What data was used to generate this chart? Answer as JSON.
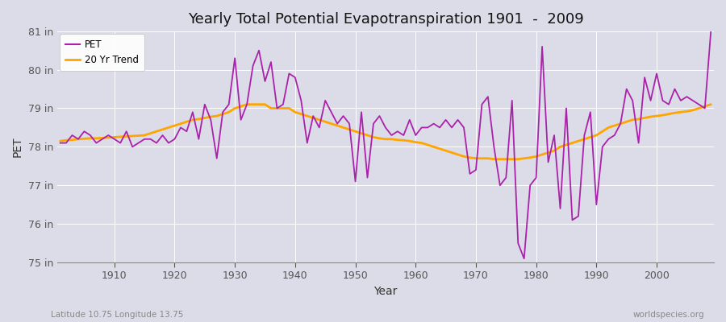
{
  "title": "Yearly Total Potential Evapotranspiration 1901  -  2009",
  "xlabel": "Year",
  "ylabel": "PET",
  "pet_color": "#AA22AA",
  "trend_color": "#FFA500",
  "background_color": "#DCDCE8",
  "plot_bg_color": "#DCDCE8",
  "grid_color": "#FFFFFF",
  "ylim": [
    75,
    81
  ],
  "ytick_labels": [
    "75 in",
    "76 in",
    "77 in",
    "78 in",
    "79 in",
    "80 in",
    "81 in"
  ],
  "ytick_values": [
    75,
    76,
    77,
    78,
    79,
    80,
    81
  ],
  "xtick_values": [
    1910,
    1920,
    1930,
    1940,
    1950,
    1960,
    1970,
    1980,
    1990,
    2000
  ],
  "footnote_left": "Latitude 10.75 Longitude 13.75",
  "footnote_right": "worldspecies.org",
  "years": [
    1901,
    1902,
    1903,
    1904,
    1905,
    1906,
    1907,
    1908,
    1909,
    1910,
    1911,
    1912,
    1913,
    1914,
    1915,
    1916,
    1917,
    1918,
    1919,
    1920,
    1921,
    1922,
    1923,
    1924,
    1925,
    1926,
    1927,
    1928,
    1929,
    1930,
    1931,
    1932,
    1933,
    1934,
    1935,
    1936,
    1937,
    1938,
    1939,
    1940,
    1941,
    1942,
    1943,
    1944,
    1945,
    1946,
    1947,
    1948,
    1949,
    1950,
    1951,
    1952,
    1953,
    1954,
    1955,
    1956,
    1957,
    1958,
    1959,
    1960,
    1961,
    1962,
    1963,
    1964,
    1965,
    1966,
    1967,
    1968,
    1969,
    1970,
    1971,
    1972,
    1973,
    1974,
    1975,
    1976,
    1977,
    1978,
    1979,
    1980,
    1981,
    1982,
    1983,
    1984,
    1985,
    1986,
    1987,
    1988,
    1989,
    1990,
    1991,
    1992,
    1993,
    1994,
    1995,
    1996,
    1997,
    1998,
    1999,
    2000,
    2001,
    2002,
    2003,
    2004,
    2005,
    2006,
    2007,
    2008,
    2009
  ],
  "pet_values": [
    78.1,
    78.1,
    78.3,
    78.2,
    78.4,
    78.3,
    78.1,
    78.2,
    78.3,
    78.2,
    78.1,
    78.4,
    78.0,
    78.1,
    78.2,
    78.2,
    78.1,
    78.3,
    78.1,
    78.2,
    78.5,
    78.4,
    78.9,
    78.2,
    79.1,
    78.7,
    77.7,
    78.9,
    79.1,
    80.3,
    78.7,
    79.1,
    80.1,
    80.5,
    79.7,
    80.2,
    79.0,
    79.1,
    79.9,
    79.8,
    79.2,
    78.1,
    78.8,
    78.5,
    79.2,
    78.9,
    78.6,
    78.8,
    78.6,
    77.1,
    78.9,
    77.2,
    78.6,
    78.8,
    78.5,
    78.3,
    78.4,
    78.3,
    78.7,
    78.3,
    78.5,
    78.5,
    78.6,
    78.5,
    78.7,
    78.5,
    78.7,
    78.5,
    77.3,
    77.4,
    79.1,
    79.3,
    78.0,
    77.0,
    77.2,
    79.2,
    75.5,
    75.1,
    77.0,
    77.2,
    80.6,
    77.6,
    78.3,
    76.4,
    79.0,
    76.1,
    76.2,
    78.3,
    78.9,
    76.5,
    78.0,
    78.2,
    78.3,
    78.6,
    79.5,
    79.2,
    78.1,
    79.8,
    79.2,
    79.9,
    79.2,
    79.1,
    79.5,
    79.2,
    79.3,
    79.2,
    79.1,
    79.0,
    81.0
  ],
  "trend_values": [
    78.15,
    78.17,
    78.18,
    78.2,
    78.21,
    78.22,
    78.22,
    78.23,
    78.24,
    78.25,
    78.26,
    78.27,
    78.28,
    78.29,
    78.3,
    78.35,
    78.4,
    78.45,
    78.5,
    78.55,
    78.6,
    78.65,
    78.7,
    78.72,
    78.75,
    78.78,
    78.8,
    78.85,
    78.9,
    79.0,
    79.05,
    79.1,
    79.1,
    79.1,
    79.1,
    79.0,
    79.0,
    79.0,
    79.0,
    78.9,
    78.85,
    78.8,
    78.75,
    78.7,
    78.65,
    78.6,
    78.55,
    78.5,
    78.45,
    78.4,
    78.35,
    78.3,
    78.25,
    78.22,
    78.2,
    78.2,
    78.18,
    78.17,
    78.15,
    78.12,
    78.1,
    78.05,
    78.0,
    77.95,
    77.9,
    77.85,
    77.8,
    77.75,
    77.72,
    77.7,
    77.7,
    77.7,
    77.68,
    77.68,
    77.68,
    77.68,
    77.68,
    77.7,
    77.72,
    77.75,
    77.8,
    77.85,
    77.9,
    78.0,
    78.05,
    78.1,
    78.15,
    78.2,
    78.25,
    78.3,
    78.4,
    78.5,
    78.55,
    78.6,
    78.65,
    78.7,
    78.72,
    78.75,
    78.78,
    78.8,
    78.82,
    78.85,
    78.88,
    78.9,
    78.92,
    78.95,
    79.0,
    79.05,
    79.1
  ]
}
